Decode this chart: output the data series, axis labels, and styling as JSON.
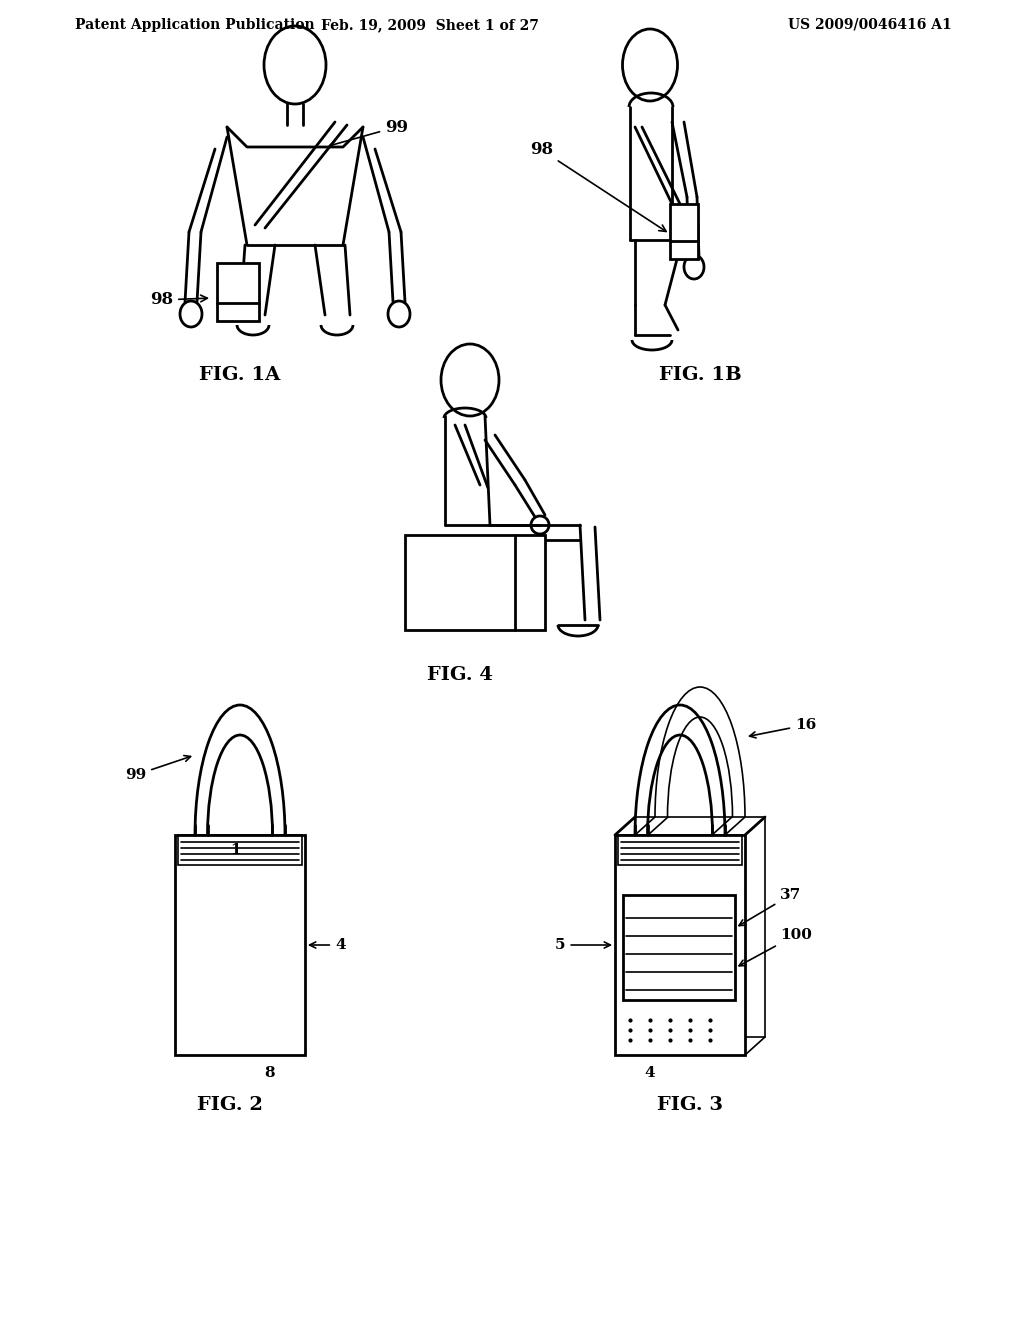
{
  "bg_color": "#ffffff",
  "line_color": "#000000",
  "header_left": "Patent Application Publication",
  "header_mid": "Feb. 19, 2009  Sheet 1 of 27",
  "header_right": "US 2009/0046416 A1",
  "fig1a_label": "FIG. 1A",
  "fig1b_label": "FIG. 1B",
  "fig4_label": "FIG. 4",
  "fig2_label": "FIG. 2",
  "fig3_label": "FIG. 3",
  "lw": 2.0,
  "lw_thin": 1.2
}
